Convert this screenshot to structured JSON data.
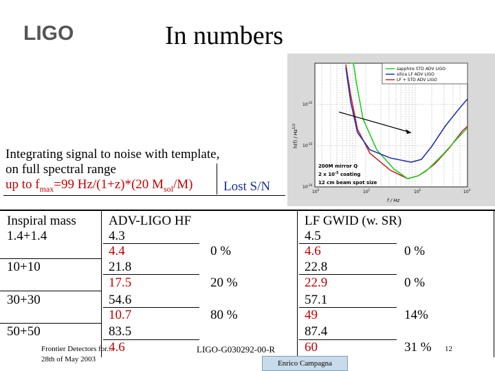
{
  "slide": {
    "logo_text": "LIGO",
    "title": "In numbers"
  },
  "integration": {
    "line1": "Integrating signal to noise with template,",
    "line2": "on full spectral range",
    "line3": "up to f",
    "line3_sub": "max",
    "line3_rest": "=99 Hz/(1+z)*(20 M",
    "line3_sub2": "sol",
    "line3_end": "/M)",
    "lost_label": "Lost S/N"
  },
  "table": {
    "headers": {
      "mass": "Inspiral mass",
      "adv": "ADV-LIGO  HF",
      "lf": "LF GWID (w. SR)"
    },
    "rows": [
      {
        "mass": "1.4+1.4",
        "adv": "4.3",
        "adv_red": "4.4",
        "adv_loss": "0 %",
        "lf": "4.5",
        "lf_red": "4.6",
        "lf_loss": "0 %"
      },
      {
        "mass": "10+10",
        "adv": "21.8",
        "adv_red": "17.5",
        "adv_loss": "20 %",
        "lf": "22.8",
        "lf_red": "22.9",
        "lf_loss": "0 %"
      },
      {
        "mass": "30+30",
        "adv": "54.6",
        "adv_red": "10.7",
        "adv_loss": "80 %",
        "lf": "57.1",
        "lf_red": "49",
        "lf_loss": "14%"
      },
      {
        "mass": "50+50",
        "adv": "83.5",
        "adv_red": "4.6",
        "adv_loss": "",
        "lf": "87.4",
        "lf_red": "60",
        "lf_loss": "31 %"
      }
    ]
  },
  "plot": {
    "legend": [
      {
        "label": "sapphire STD ADV LIGO",
        "color": "#22cc22"
      },
      {
        "label": "silica LF ADV LIGO",
        "color": "#2233aa"
      },
      {
        "label": "LF + STD ADV LIGO",
        "color": "#cc2222"
      }
    ],
    "ylabel": "h(f) / Hz",
    "ylabel_exp": "1/2",
    "xlabel": "f / Hz",
    "y_ticks": [
      {
        "base": "10",
        "exp": "-22"
      },
      {
        "base": "10",
        "exp": "-23"
      },
      {
        "base": "10",
        "exp": "-24"
      }
    ],
    "x_ticks": [
      {
        "base": "10",
        "exp": "0"
      },
      {
        "base": "10",
        "exp": "1"
      },
      {
        "base": "10",
        "exp": "2"
      },
      {
        "base": "10",
        "exp": "3"
      }
    ],
    "annotation": {
      "line1": "200M mirror Q",
      "line2_a": "2 x 10",
      "line2_exp": "-5",
      "line2_b": "coating",
      "line3": "12 cm beam spot size"
    }
  },
  "footer": {
    "left_line1": "Frontier Detectors for...",
    "left_line2": "28th of May 2003",
    "doc_id": "LIGO-G030292-00-R",
    "page": "12",
    "presenter": "Enrico Campagna"
  }
}
